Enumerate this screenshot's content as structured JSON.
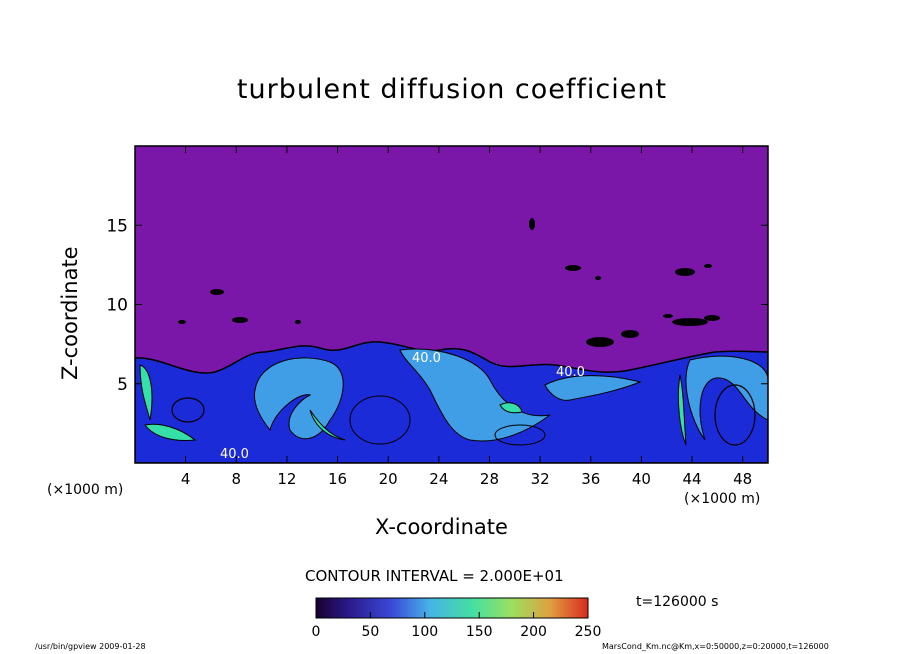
{
  "chart_data": {
    "type": "heatmap",
    "title": "turbulent diffusion coefficient",
    "xlabel": "X-coordinate",
    "ylabel": "Z-coordinate",
    "x_unit_note": "(×1000 m)",
    "x_unit_note_right": "(×1000 m)",
    "xlim": [
      0,
      50
    ],
    "ylim": [
      0,
      20
    ],
    "x_ticks": [
      4,
      8,
      12,
      16,
      20,
      24,
      28,
      32,
      36,
      40,
      44,
      48
    ],
    "y_ticks": [
      5,
      10,
      15
    ],
    "colorbar": {
      "min": 0,
      "max": 250,
      "ticks": [
        0,
        50,
        100,
        150,
        200,
        250
      ]
    },
    "contour_interval": "CONTOUR INTERVAL = 2.000E+01",
    "contour_labels": [
      "40.0",
      "40.0",
      "40.0"
    ],
    "time": "t=126000 s",
    "colors": {
      "background_field": "#7a17a8",
      "low": "#1b2bd8",
      "mid": "#3f9ee6",
      "high": "#34e0a8"
    }
  },
  "footer": {
    "left": "/usr/bin/gpview   2009-01-28",
    "right": "MarsCond_Km.nc@Km,x=0:50000,z=0:20000,t=126000"
  }
}
